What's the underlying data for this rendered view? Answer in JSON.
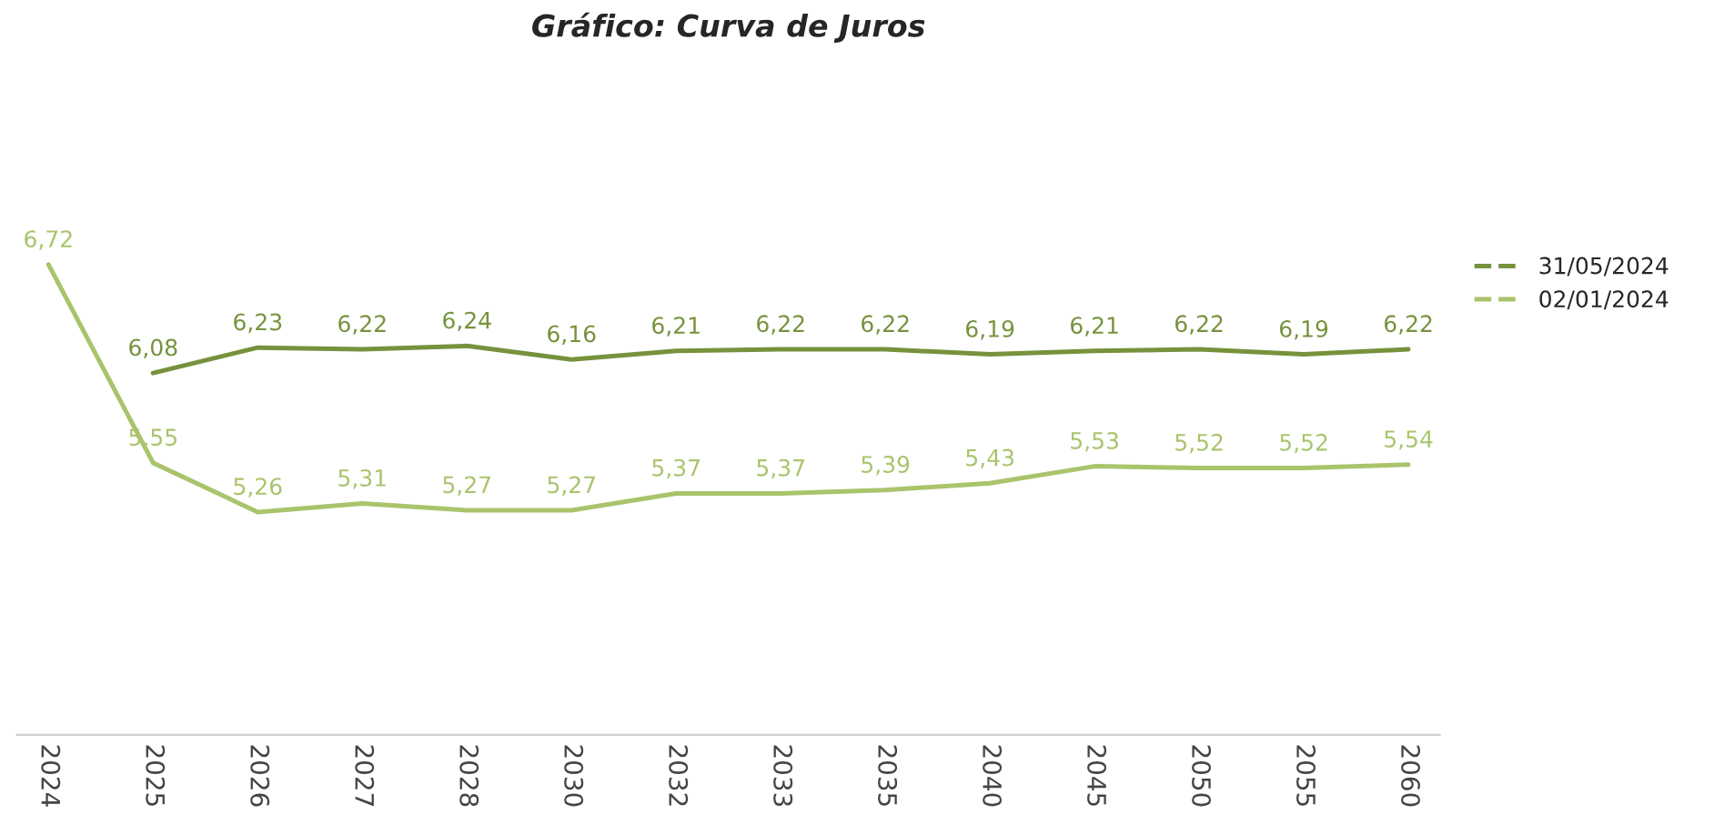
{
  "chart_data": {
    "type": "line",
    "title": "Gráfico: Curva de Juros",
    "categories": [
      "2024",
      "2025",
      "2026",
      "2027",
      "2028",
      "2030",
      "2032",
      "2033",
      "2035",
      "2040",
      "2045",
      "2050",
      "2055",
      "2060"
    ],
    "series": [
      {
        "name": "31/05/2024",
        "color": "#76923c",
        "values": [
          null,
          6.08,
          6.23,
          6.22,
          6.24,
          6.16,
          6.21,
          6.22,
          6.22,
          6.19,
          6.21,
          6.22,
          6.19,
          6.22
        ],
        "value_labels": [
          null,
          "6,08",
          "6,23",
          "6,22",
          "6,24",
          "6,16",
          "6,21",
          "6,22",
          "6,22",
          "6,19",
          "6,21",
          "6,22",
          "6,19",
          "6,22"
        ]
      },
      {
        "name": "02/01/2024",
        "color": "#a9c46c",
        "values": [
          6.72,
          5.55,
          5.26,
          5.31,
          5.27,
          5.27,
          5.37,
          5.37,
          5.39,
          5.43,
          5.53,
          5.52,
          5.52,
          5.54
        ],
        "value_labels": [
          "6,72",
          "5,55",
          "5,26",
          "5,31",
          "5,27",
          "5,27",
          "5,37",
          "5,37",
          "5,39",
          "5,43",
          "5,53",
          "5,52",
          "5,52",
          "5,54"
        ]
      }
    ],
    "legend": "right",
    "grid": false,
    "line_style": "solid"
  }
}
